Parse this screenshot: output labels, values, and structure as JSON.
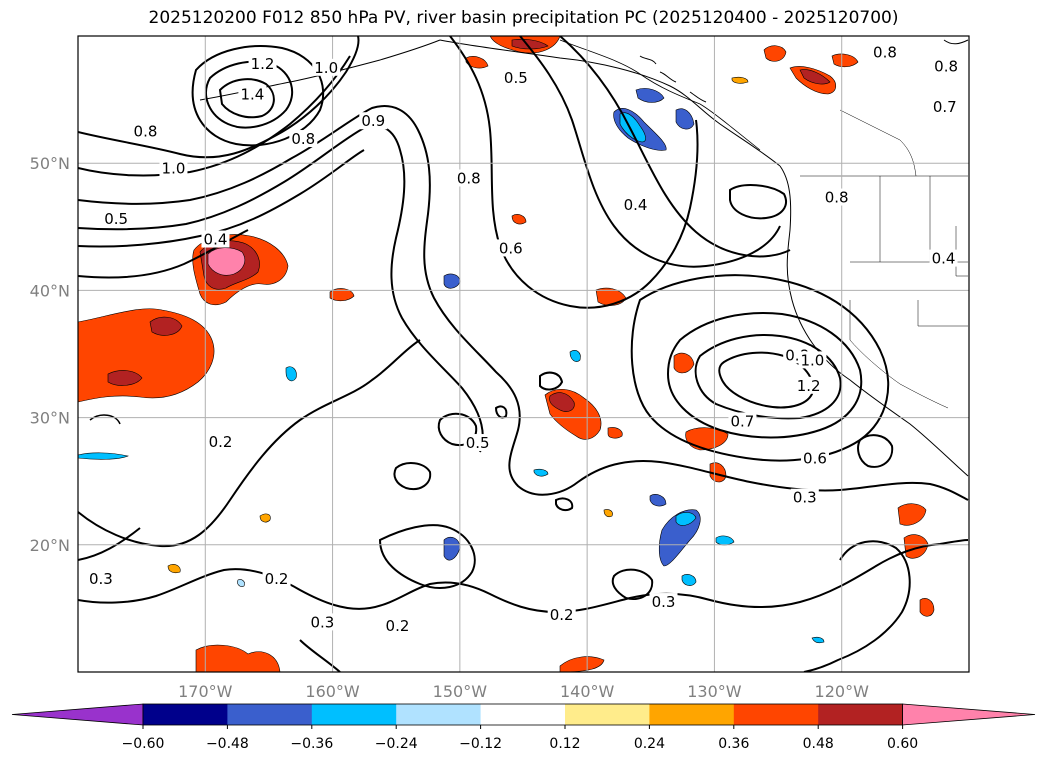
{
  "title": "2025120200 F012 850 hPa PV, river basin precipitation PC (2025120400 - 2025120700)",
  "map": {
    "lon_range": [
      -180,
      -110
    ],
    "lat_range": [
      10,
      60
    ],
    "lon_ticks": [
      {
        "value": -170,
        "label": "170°W"
      },
      {
        "value": -160,
        "label": "160°W"
      },
      {
        "value": -150,
        "label": "150°W"
      },
      {
        "value": -140,
        "label": "140°W"
      },
      {
        "value": -130,
        "label": "130°W"
      },
      {
        "value": -120,
        "label": "120°W"
      }
    ],
    "lat_ticks": [
      {
        "value": 20,
        "label": "20°N"
      },
      {
        "value": 30,
        "label": "30°N"
      },
      {
        "value": 40,
        "label": "40°N"
      },
      {
        "value": 50,
        "label": "50°N"
      }
    ],
    "grid": true,
    "contour_labels": [
      {
        "text": "1.2",
        "lon": -165.5,
        "lat": 57.8
      },
      {
        "text": "1.0",
        "lon": -160.5,
        "lat": 57.5
      },
      {
        "text": "1.4",
        "lon": -166.3,
        "lat": 55.4
      },
      {
        "text": "0.8",
        "lon": -174.7,
        "lat": 52.5
      },
      {
        "text": "0.9",
        "lon": -156.8,
        "lat": 53.3
      },
      {
        "text": "0.8",
        "lon": -162.3,
        "lat": 51.9
      },
      {
        "text": "1.0",
        "lon": -172.5,
        "lat": 49.6
      },
      {
        "text": "0.5",
        "lon": -177.0,
        "lat": 45.6
      },
      {
        "text": "0.4",
        "lon": -169.2,
        "lat": 44.0
      },
      {
        "text": "0.5",
        "lon": -145.6,
        "lat": 56.7
      },
      {
        "text": "0.8",
        "lon": -149.3,
        "lat": 48.8
      },
      {
        "text": "0.4",
        "lon": -136.2,
        "lat": 46.7
      },
      {
        "text": "0.6",
        "lon": -146.0,
        "lat": 43.3
      },
      {
        "text": "0.8",
        "lon": -116.6,
        "lat": 58.7
      },
      {
        "text": "0.8",
        "lon": -111.8,
        "lat": 57.6
      },
      {
        "text": "0.7",
        "lon": -111.9,
        "lat": 54.4
      },
      {
        "text": "0.8",
        "lon": -120.4,
        "lat": 47.3
      },
      {
        "text": "0.4",
        "lon": -112.0,
        "lat": 42.5
      },
      {
        "text": "0.8",
        "lon": -123.5,
        "lat": 34.9
      },
      {
        "text": "1.0",
        "lon": -122.3,
        "lat": 34.5
      },
      {
        "text": "1.2",
        "lon": -122.6,
        "lat": 32.5
      },
      {
        "text": "0.7",
        "lon": -127.8,
        "lat": 29.7
      },
      {
        "text": "0.6",
        "lon": -122.1,
        "lat": 26.8
      },
      {
        "text": "0.3",
        "lon": -122.9,
        "lat": 23.7
      },
      {
        "text": "0.5",
        "lon": -148.6,
        "lat": 28.0
      },
      {
        "text": "0.2",
        "lon": -168.8,
        "lat": 28.1
      },
      {
        "text": "0.3",
        "lon": -178.2,
        "lat": 17.3
      },
      {
        "text": "0.2",
        "lon": -164.4,
        "lat": 17.3
      },
      {
        "text": "0.3",
        "lon": -160.8,
        "lat": 13.9
      },
      {
        "text": "0.2",
        "lon": -154.9,
        "lat": 13.6
      },
      {
        "text": "0.2",
        "lon": -142.0,
        "lat": 14.5
      },
      {
        "text": "0.3",
        "lon": -134.0,
        "lat": 15.5
      }
    ]
  },
  "colorbar": {
    "labels": [
      "−0.60",
      "−0.48",
      "−0.36",
      "−0.24",
      "−0.12",
      "0.12",
      "0.24",
      "0.36",
      "0.48",
      "0.60"
    ],
    "colors": [
      "#9932cc",
      "#00008b",
      "#3a5fcd",
      "#00bfff",
      "#b0e2ff",
      "#ffffff",
      "#ffec8b",
      "#ffa500",
      "#ff4500",
      "#b22222",
      "#ff82ab"
    ]
  }
}
